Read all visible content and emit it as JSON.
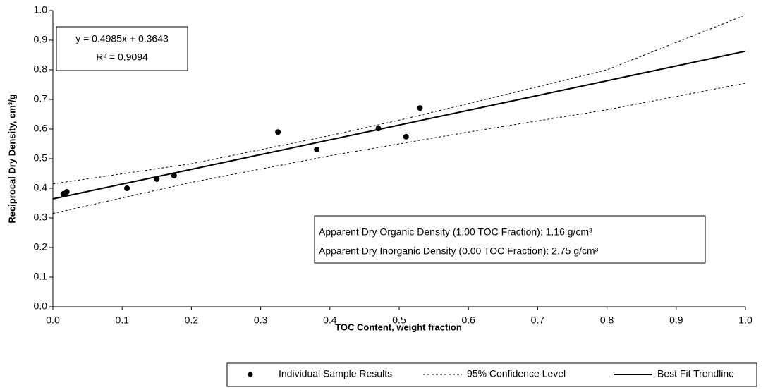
{
  "chart_data": {
    "type": "scatter",
    "x_label": "TOC Content, weight fraction",
    "y_label": "Reciprocal Dry Density, cm³/g",
    "xlim": [
      0,
      1
    ],
    "ylim": [
      0,
      1
    ],
    "xticks": [
      {
        "value": 0,
        "label": "0.0"
      },
      0.1,
      0.2,
      0.3,
      0.4,
      0.5,
      0.6,
      0.7,
      0.8,
      0.9,
      {
        "value": 1,
        "label": "1.0"
      }
    ],
    "yticks": [
      {
        "value": 0,
        "label": "0.0"
      },
      0.1,
      0.2,
      0.3,
      0.4,
      0.5,
      0.6,
      0.7,
      0.8,
      0.9,
      {
        "value": 1,
        "label": "1.0"
      }
    ],
    "grid": false,
    "annotations": [
      "y = 0.4985x + 0.3643",
      "R² = 0.9094",
      "Apparent Dry Organic Density (1.00 TOC Fraction): 1.16 g/cm³",
      "Apparent Dry Inorganic Density (0.00 TOC Fraction): 2.75 g/cm³"
    ],
    "series": [
      {
        "name": "Individual Sample Results",
        "mode": "markers",
        "color": "#000000",
        "x": [
          0.015,
          0.02,
          0.107,
          0.15,
          0.175,
          0.325,
          0.381,
          0.47,
          0.51,
          0.53
        ],
        "values": [
          0.381,
          0.388,
          0.4,
          0.431,
          0.443,
          0.59,
          0.531,
          0.602,
          0.574,
          0.671
        ]
      },
      {
        "name": "95% Confidence Level",
        "mode": "dashed",
        "color": "#000000",
        "x": [
          0,
          0.2,
          0.4,
          0.5,
          0.6,
          0.8,
          1
        ],
        "values": [
          0.415,
          0.483,
          0.578,
          0.63,
          0.686,
          0.8,
          0.985
        ]
      },
      {
        "mode": "dashed",
        "color": "#000000",
        "x": [
          0,
          0.2,
          0.4,
          0.5,
          0.6,
          0.8,
          1
        ],
        "values": [
          0.315,
          0.42,
          0.51,
          0.55,
          0.59,
          0.665,
          0.755
        ]
      },
      {
        "name": "Best Fit Trendline",
        "mode": "line",
        "color": "#000000",
        "x": [
          0,
          1
        ],
        "values": [
          0.3643,
          0.8628
        ]
      }
    ]
  }
}
